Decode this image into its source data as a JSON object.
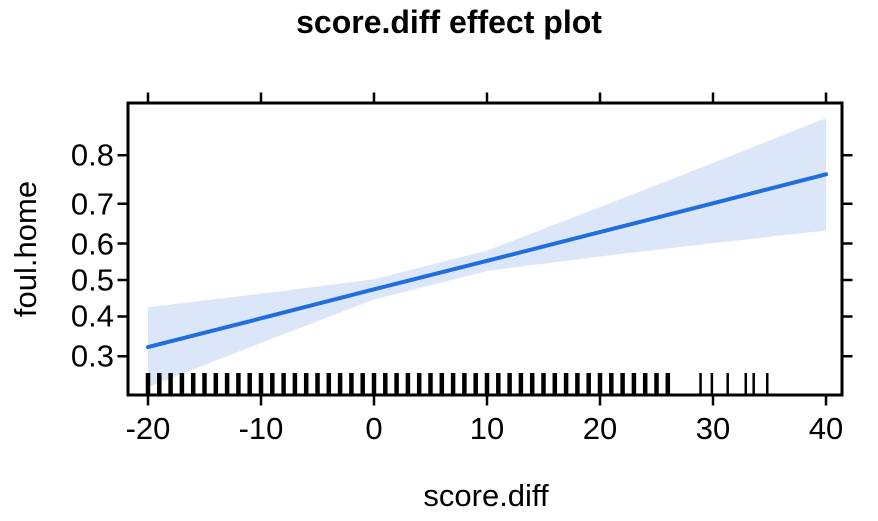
{
  "title": "score.diff effect plot",
  "axes": {
    "x_label": "score.diff",
    "y_label": "foul.home",
    "x_tick_labels": [
      "-20",
      "-10",
      "0",
      "10",
      "20",
      "30",
      "40"
    ],
    "x_tick_values": [
      -20,
      -10,
      0,
      10,
      20,
      30,
      40
    ],
    "y_tick_labels": [
      "0.3",
      "0.4",
      "0.5",
      "0.6",
      "0.7",
      "0.8"
    ],
    "y_tick_values": [
      0.3,
      0.4,
      0.5,
      0.6,
      0.7,
      0.8
    ],
    "y_scale": "logit",
    "ticks_on_all_sides": true
  },
  "colors": {
    "line": "#1e6fdd",
    "band": "#dbe7f8",
    "axis": "#000000",
    "text": "#000000",
    "background": "#ffffff"
  },
  "chart_data": {
    "type": "line",
    "title": "score.diff effect plot",
    "xlabel": "score.diff",
    "ylabel": "foul.home",
    "x": [
      -20,
      -10,
      0,
      10,
      20,
      30,
      40
    ],
    "series": [
      {
        "name": "fitted-effect",
        "values": [
          0.322,
          0.395,
          0.474,
          0.553,
          0.63,
          0.701,
          0.764
        ]
      },
      {
        "name": "confidence-upper",
        "values": [
          0.425,
          0.462,
          0.502,
          0.581,
          0.692,
          0.786,
          0.858
        ]
      },
      {
        "name": "confidence-lower",
        "values": [
          0.233,
          0.332,
          0.446,
          0.525,
          0.565,
          0.601,
          0.634
        ]
      }
    ],
    "rug_x": [
      -20,
      -19,
      -18,
      -17,
      -16,
      -15,
      -14,
      -13,
      -12,
      -11,
      -10,
      -9,
      -8,
      -7,
      -6,
      -5,
      -4,
      -3,
      -2,
      -1,
      0,
      1,
      2,
      3,
      4,
      5,
      6,
      7,
      8,
      9,
      10,
      11,
      12,
      13,
      14,
      15,
      16,
      17,
      18,
      19,
      20,
      21,
      22,
      23,
      24,
      25,
      26,
      28.9,
      29.9,
      31.3,
      32.9,
      33.6,
      34.8
    ],
    "xlim": [
      -21.77,
      41.42
    ],
    "ylim_probability": [
      0.218,
      0.877
    ],
    "y_axis_transform": "logit",
    "grid": false,
    "legend": "none"
  }
}
